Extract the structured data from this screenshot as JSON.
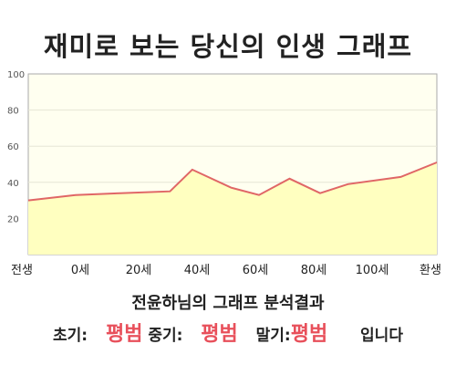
{
  "title": "재미로 보는 당신의 인생 그래프",
  "subtitle": "전윤하님의 그래프 분석결과",
  "summary": {
    "early_label": "초기:",
    "early_value": "평범",
    "mid_label": "중기:",
    "mid_value": "평범",
    "late_label": "말기:",
    "late_value": "평범",
    "ending": "입니다"
  },
  "colors": {
    "line": "#e06666",
    "fill": "#ffffc0",
    "plot_bg": "#fffff0",
    "verdict": "#e8505b"
  },
  "chart_data": {
    "type": "area",
    "x_tick_labels": [
      "전생",
      "0세",
      "20세",
      "40세",
      "60세",
      "80세",
      "100세",
      "환생"
    ],
    "ylim": [
      0,
      100
    ],
    "y_ticks": [
      20,
      40,
      60,
      80,
      100
    ],
    "grid": true,
    "series": [
      {
        "x": [
          -28,
          -11,
          5,
          23,
          31,
          45,
          55,
          66,
          77,
          87,
          106,
          119
        ],
        "values": [
          30,
          33,
          34,
          35,
          47,
          37,
          33,
          42,
          34,
          39,
          43,
          51
        ]
      }
    ]
  }
}
